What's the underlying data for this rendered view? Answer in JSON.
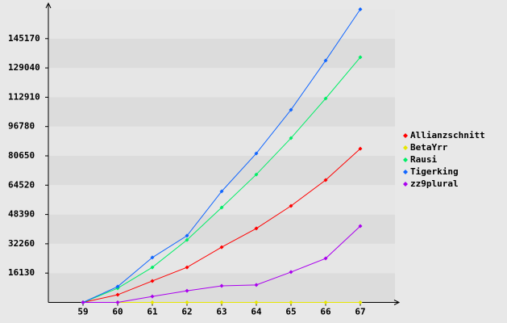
{
  "chart_data": {
    "type": "line",
    "categories": [
      "59",
      "60",
      "61",
      "62",
      "63",
      "64",
      "65",
      "66",
      "67"
    ],
    "series": [
      {
        "name": "Allianzschnitt",
        "color": "#ff0000",
        "values": [
          0,
          4200,
          11800,
          19300,
          30400,
          40700,
          53100,
          67300,
          84600
        ]
      },
      {
        "name": "BetaYrr",
        "color": "#e6e600",
        "values": [
          0,
          0,
          0,
          0,
          0,
          0,
          0,
          0,
          0
        ]
      },
      {
        "name": "Rausi",
        "color": "#00ee66",
        "values": [
          0,
          7800,
          19300,
          34400,
          52200,
          70400,
          90400,
          112200,
          134900
        ]
      },
      {
        "name": "Tigerking",
        "color": "#1166ff",
        "values": [
          0,
          8700,
          24700,
          36700,
          61100,
          82000,
          106000,
          133100,
          161300
        ]
      },
      {
        "name": "zz9plural",
        "color": "#aa00ee",
        "values": [
          0,
          0,
          3300,
          6400,
          9100,
          9600,
          16700,
          24200,
          42000
        ]
      }
    ],
    "ylim": [
      0,
      161300
    ],
    "yticks": [
      16130,
      32260,
      48390,
      64520,
      80650,
      96780,
      112910,
      129040,
      145170
    ],
    "grid": true,
    "legend": "right"
  }
}
